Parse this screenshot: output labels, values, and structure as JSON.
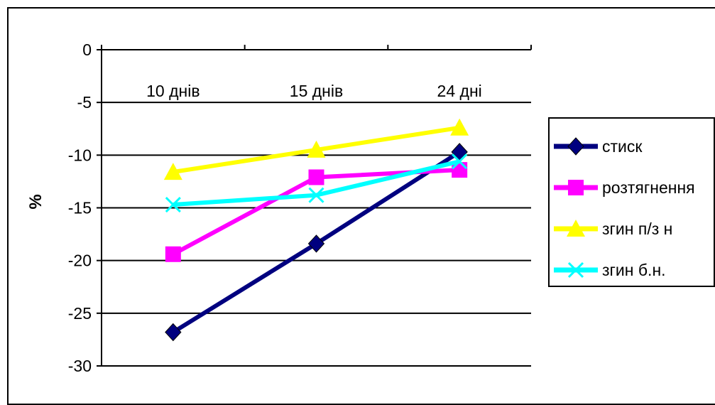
{
  "chart_data": {
    "type": "line",
    "title": "",
    "xlabel": "",
    "ylabel": "%",
    "ylim": [
      -30,
      0
    ],
    "yticks": [
      "0",
      "-5",
      "-10",
      "-15",
      "-20",
      "-25",
      "-30"
    ],
    "ytick_values": [
      0,
      -5,
      -10,
      -15,
      -20,
      -25,
      -30
    ],
    "categories": [
      "10 днів",
      "15 днів",
      "24 дні"
    ],
    "grid": "horizontal",
    "legend_position": "right",
    "series": [
      {
        "name": "стиск",
        "color": "#00007f",
        "marker": "diamond",
        "values": [
          -26.8,
          -18.4,
          -9.7
        ]
      },
      {
        "name": "розтягнення",
        "color": "#ff00ff",
        "marker": "square",
        "values": [
          -19.4,
          -12.1,
          -11.4
        ]
      },
      {
        "name": "згин п/з н",
        "color": "#ffff00",
        "marker": "triangle",
        "values": [
          -11.6,
          -9.5,
          -7.4
        ]
      },
      {
        "name": "згин б.н.",
        "color": "#00ffff",
        "marker": "x",
        "values": [
          -14.7,
          -13.8,
          -10.6
        ]
      }
    ]
  }
}
